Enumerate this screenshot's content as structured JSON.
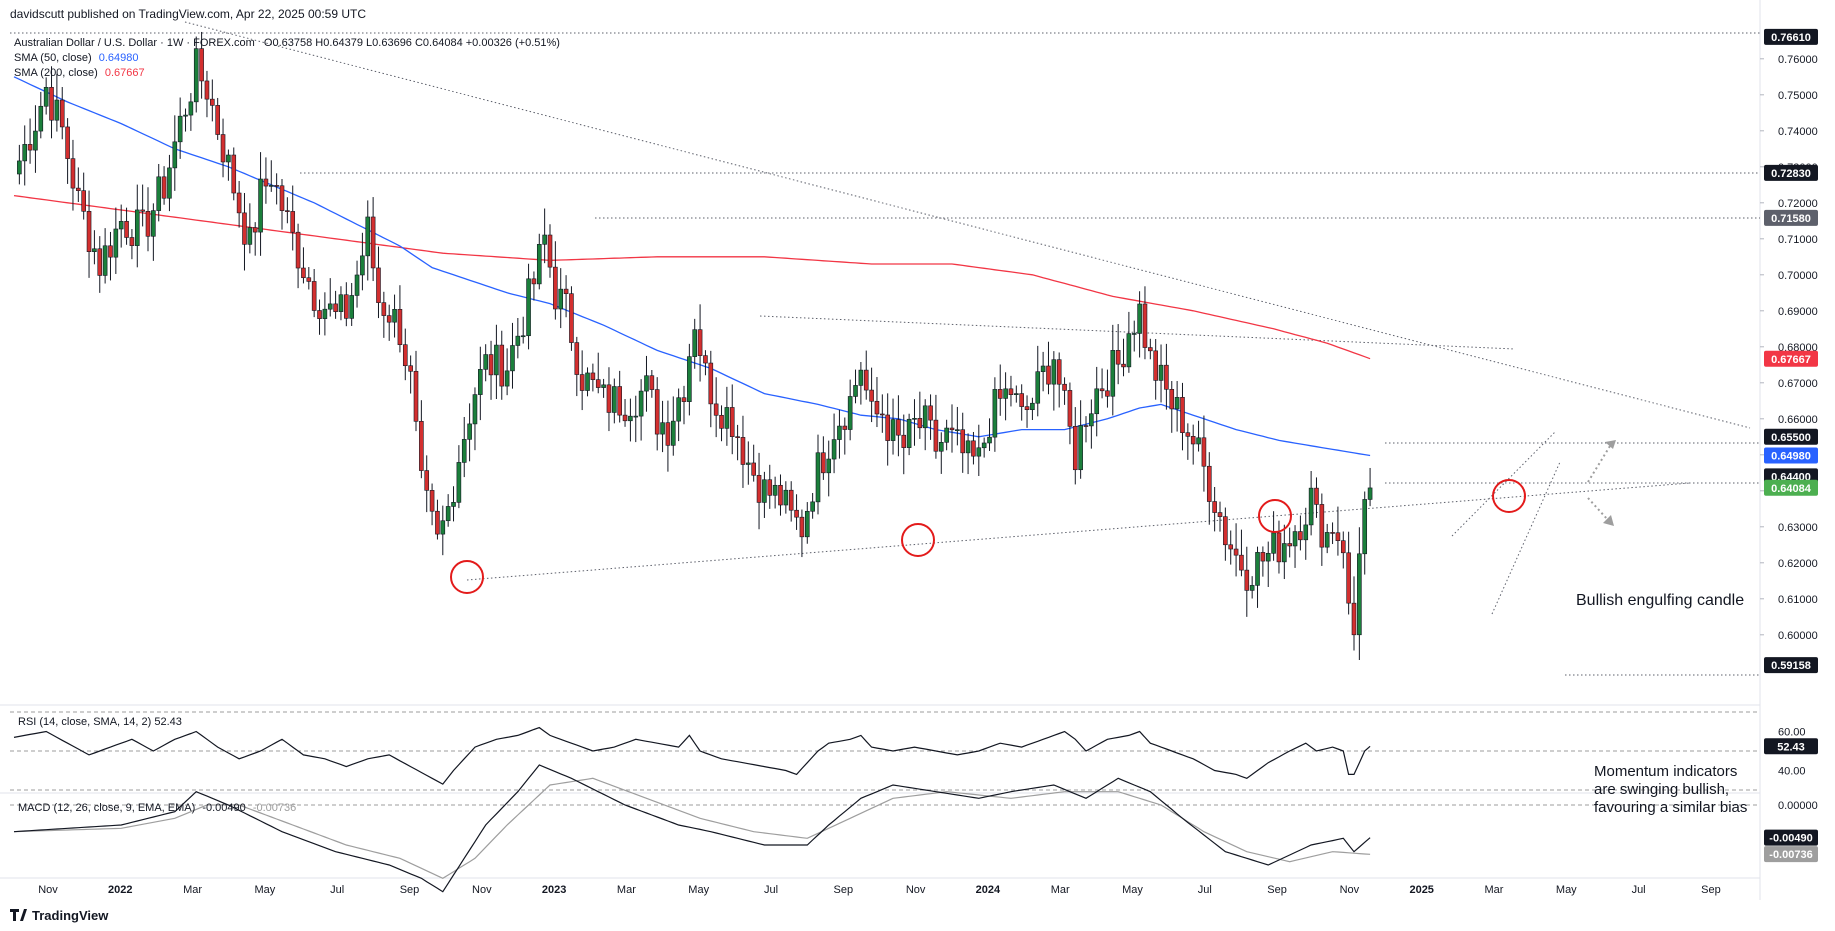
{
  "header": {
    "published": "davidscutt published on TradingView.com, Apr 22, 2025 00:59 UTC",
    "symbol": "Australian Dollar / U.S. Dollar · 1W · FOREX.com",
    "ohlc": "O0.63758 H0.64379 L0.63696 C0.64084 +0.00326 (+0.51%)",
    "sma50_label": "SMA (50, close)",
    "sma50_value": "0.64980",
    "sma200_label": "SMA (200, close)",
    "sma200_value": "0.67667"
  },
  "rsi_header": "RSI (14, close, SMA, 14, 2)  52.43",
  "macd_header_prefix": "MACD (12, 26, close, 9, EMA, EMA)",
  "macd_val1": "-0.00490",
  "macd_val2": "-0.00736",
  "annotations": {
    "engulfing": "Bullish engulfing candle",
    "momentum_1": "Momentum indicators",
    "momentum_2": "are swinging bullish,",
    "momentum_3": "favouring a similar bias"
  },
  "footer_logo": "TradingView",
  "colors": {
    "up": "#1b7f3b",
    "down": "#d32f2f",
    "sma50": "#2962ff",
    "sma200": "#f23645",
    "circle": "#e31b1b",
    "last_price": "#4caf50"
  },
  "chart_data": {
    "type": "candlestick",
    "price_axis": {
      "ticks": [
        "0.76000",
        "0.75000",
        "0.74000",
        "0.73000",
        "0.72000",
        "0.71000",
        "0.70000",
        "0.69000",
        "0.68000",
        "0.67000",
        "0.66000",
        "0.65000",
        "0.64000",
        "0.63000",
        "0.62000",
        "0.61000",
        "0.60000"
      ],
      "min": 0.588,
      "max": 0.768
    },
    "price_labels": [
      {
        "value": "0.76610",
        "kind": "level"
      },
      {
        "value": "0.72830",
        "kind": "level"
      },
      {
        "value": "0.71580",
        "kind": "level-grey"
      },
      {
        "value": "0.67667",
        "kind": "sma200"
      },
      {
        "value": "0.65500",
        "kind": "level"
      },
      {
        "value": "0.64980",
        "kind": "sma50"
      },
      {
        "value": "0.64400",
        "kind": "level"
      },
      {
        "value": "0.64084",
        "kind": "last"
      },
      {
        "value": "0.59158",
        "kind": "level"
      }
    ],
    "time_axis": {
      "labels": [
        "Nov",
        "2022",
        "Mar",
        "May",
        "Jul",
        "Sep",
        "Nov",
        "2023",
        "Mar",
        "May",
        "Jul",
        "Sep",
        "Nov",
        "2024",
        "Mar",
        "May",
        "Jul",
        "Sep",
        "Nov",
        "2025",
        "Mar",
        "May",
        "Jul",
        "Sep"
      ],
      "bold": [
        "2022",
        "2023",
        "2024",
        "2025"
      ]
    },
    "close_series_anchors": [
      [
        0,
        0.728
      ],
      [
        4,
        0.743
      ],
      [
        6,
        0.752
      ],
      [
        9,
        0.74
      ],
      [
        12,
        0.72
      ],
      [
        16,
        0.703
      ],
      [
        20,
        0.715
      ],
      [
        24,
        0.712
      ],
      [
        28,
        0.725
      ],
      [
        31,
        0.742
      ],
      [
        34,
        0.757
      ],
      [
        36,
        0.752
      ],
      [
        40,
        0.73
      ],
      [
        44,
        0.708
      ],
      [
        46,
        0.722
      ],
      [
        48,
        0.728
      ],
      [
        52,
        0.71
      ],
      [
        56,
        0.695
      ],
      [
        60,
        0.688
      ],
      [
        62,
        0.69
      ],
      [
        64,
        0.7
      ],
      [
        66,
        0.712
      ],
      [
        68,
        0.693
      ],
      [
        70,
        0.69
      ],
      [
        72,
        0.685
      ],
      [
        74,
        0.67
      ],
      [
        76,
        0.64
      ],
      [
        79,
        0.625
      ],
      [
        81,
        0.635
      ],
      [
        83,
        0.65
      ],
      [
        86,
        0.668
      ],
      [
        88,
        0.675
      ],
      [
        92,
        0.675
      ],
      [
        95,
        0.688
      ],
      [
        97,
        0.698
      ],
      [
        99,
        0.71
      ],
      [
        101,
        0.695
      ],
      [
        103,
        0.69
      ],
      [
        106,
        0.672
      ],
      [
        110,
        0.665
      ],
      [
        114,
        0.665
      ],
      [
        118,
        0.668
      ],
      [
        120,
        0.66
      ],
      [
        122,
        0.658
      ],
      [
        125,
        0.67
      ],
      [
        127,
        0.688
      ],
      [
        129,
        0.672
      ],
      [
        131,
        0.665
      ],
      [
        134,
        0.66
      ],
      [
        137,
        0.648
      ],
      [
        140,
        0.64
      ],
      [
        143,
        0.638
      ],
      [
        145,
        0.632
      ],
      [
        147,
        0.63
      ],
      [
        149,
        0.642
      ],
      [
        151,
        0.65
      ],
      [
        153,
        0.658
      ],
      [
        156,
        0.665
      ],
      [
        158,
        0.675
      ],
      [
        160,
        0.66
      ],
      [
        162,
        0.662
      ],
      [
        164,
        0.655
      ],
      [
        166,
        0.652
      ],
      [
        168,
        0.658
      ],
      [
        170,
        0.658
      ],
      [
        172,
        0.652
      ],
      [
        174,
        0.655
      ],
      [
        176,
        0.652
      ],
      [
        178,
        0.648
      ],
      [
        180,
        0.648
      ],
      [
        182,
        0.66
      ],
      [
        184,
        0.665
      ],
      [
        186,
        0.668
      ],
      [
        188,
        0.66
      ],
      [
        190,
        0.665
      ],
      [
        192,
        0.672
      ],
      [
        194,
        0.678
      ],
      [
        196,
        0.662
      ],
      [
        198,
        0.65
      ],
      [
        200,
        0.662
      ],
      [
        202,
        0.668
      ],
      [
        204,
        0.672
      ],
      [
        206,
        0.675
      ],
      [
        208,
        0.685
      ],
      [
        210,
        0.69
      ],
      [
        212,
        0.676
      ],
      [
        214,
        0.67
      ],
      [
        216,
        0.664
      ],
      [
        218,
        0.66
      ],
      [
        220,
        0.654
      ],
      [
        222,
        0.646
      ],
      [
        224,
        0.638
      ],
      [
        226,
        0.628
      ],
      [
        228,
        0.622
      ],
      [
        230,
        0.618
      ],
      [
        232,
        0.62
      ],
      [
        234,
        0.622
      ],
      [
        236,
        0.625
      ],
      [
        238,
        0.628
      ],
      [
        240,
        0.632
      ],
      [
        241,
        0.635
      ],
      [
        242,
        0.638
      ],
      [
        243,
        0.632
      ],
      [
        244,
        0.63
      ],
      [
        245,
        0.628
      ],
      [
        246,
        0.631
      ],
      [
        247,
        0.628
      ],
      [
        248,
        0.626
      ],
      [
        249,
        0.606
      ],
      [
        250,
        0.6
      ],
      [
        251,
        0.6225
      ],
      [
        252,
        0.6376
      ],
      [
        253,
        0.6408
      ]
    ],
    "sma50_anchors": [
      [
        0,
        0.755
      ],
      [
        10,
        0.748
      ],
      [
        20,
        0.742
      ],
      [
        30,
        0.735
      ],
      [
        40,
        0.73
      ],
      [
        48,
        0.725
      ],
      [
        56,
        0.72
      ],
      [
        64,
        0.714
      ],
      [
        72,
        0.708
      ],
      [
        78,
        0.702
      ],
      [
        84,
        0.699
      ],
      [
        92,
        0.695
      ],
      [
        100,
        0.692
      ],
      [
        110,
        0.686
      ],
      [
        120,
        0.679
      ],
      [
        130,
        0.674
      ],
      [
        140,
        0.667
      ],
      [
        150,
        0.664
      ],
      [
        158,
        0.661
      ],
      [
        165,
        0.66
      ],
      [
        172,
        0.657
      ],
      [
        180,
        0.655
      ],
      [
        188,
        0.657
      ],
      [
        196,
        0.657
      ],
      [
        204,
        0.66
      ],
      [
        210,
        0.663
      ],
      [
        214,
        0.664
      ],
      [
        220,
        0.661
      ],
      [
        228,
        0.657
      ],
      [
        236,
        0.654
      ],
      [
        244,
        0.652
      ],
      [
        253,
        0.6498
      ]
    ],
    "sma200_anchors": [
      [
        0,
        0.722
      ],
      [
        20,
        0.718
      ],
      [
        40,
        0.714
      ],
      [
        60,
        0.71
      ],
      [
        80,
        0.706
      ],
      [
        100,
        0.704
      ],
      [
        120,
        0.705
      ],
      [
        140,
        0.705
      ],
      [
        160,
        0.703
      ],
      [
        175,
        0.703
      ],
      [
        190,
        0.7
      ],
      [
        205,
        0.694
      ],
      [
        220,
        0.69
      ],
      [
        235,
        0.685
      ],
      [
        245,
        0.681
      ],
      [
        253,
        0.6767
      ]
    ],
    "rsi_anchors": [
      [
        0,
        57
      ],
      [
        6,
        60
      ],
      [
        10,
        54
      ],
      [
        14,
        48
      ],
      [
        18,
        52
      ],
      [
        22,
        56
      ],
      [
        26,
        50
      ],
      [
        30,
        56
      ],
      [
        34,
        60
      ],
      [
        38,
        52
      ],
      [
        42,
        46
      ],
      [
        46,
        50
      ],
      [
        50,
        56
      ],
      [
        54,
        48
      ],
      [
        58,
        46
      ],
      [
        62,
        42
      ],
      [
        66,
        46
      ],
      [
        70,
        48
      ],
      [
        74,
        42
      ],
      [
        78,
        36
      ],
      [
        80,
        33
      ],
      [
        82,
        40
      ],
      [
        86,
        52
      ],
      [
        90,
        56
      ],
      [
        94,
        58
      ],
      [
        98,
        62
      ],
      [
        100,
        58
      ],
      [
        104,
        54
      ],
      [
        108,
        50
      ],
      [
        112,
        52
      ],
      [
        116,
        56
      ],
      [
        120,
        54
      ],
      [
        124,
        52
      ],
      [
        126,
        58
      ],
      [
        128,
        50
      ],
      [
        132,
        46
      ],
      [
        136,
        44
      ],
      [
        140,
        42
      ],
      [
        144,
        40
      ],
      [
        146,
        38
      ],
      [
        148,
        44
      ],
      [
        150,
        50
      ],
      [
        152,
        54
      ],
      [
        156,
        56
      ],
      [
        158,
        58
      ],
      [
        160,
        52
      ],
      [
        164,
        50
      ],
      [
        168,
        52
      ],
      [
        172,
        50
      ],
      [
        176,
        48
      ],
      [
        180,
        50
      ],
      [
        184,
        54
      ],
      [
        188,
        52
      ],
      [
        192,
        56
      ],
      [
        196,
        60
      ],
      [
        198,
        56
      ],
      [
        200,
        50
      ],
      [
        204,
        56
      ],
      [
        208,
        58
      ],
      [
        210,
        60
      ],
      [
        212,
        54
      ],
      [
        216,
        50
      ],
      [
        220,
        46
      ],
      [
        224,
        40
      ],
      [
        228,
        38
      ],
      [
        230,
        36
      ],
      [
        234,
        44
      ],
      [
        238,
        50
      ],
      [
        241,
        54
      ],
      [
        243,
        50
      ],
      [
        246,
        52
      ],
      [
        248,
        50
      ],
      [
        249,
        38
      ],
      [
        250,
        38
      ],
      [
        252,
        50
      ],
      [
        253,
        52.4
      ]
    ],
    "rsi_axis": {
      "ticks": [
        "60.00",
        "40.00"
      ],
      "min": 30,
      "max": 70,
      "current": "52.43"
    },
    "macd_anchors": [
      [
        0,
        -0.004
      ],
      [
        20,
        -0.003
      ],
      [
        30,
        -0.001
      ],
      [
        34,
        0.002
      ],
      [
        40,
        0.0
      ],
      [
        50,
        -0.004
      ],
      [
        60,
        -0.007
      ],
      [
        70,
        -0.009
      ],
      [
        76,
        -0.011
      ],
      [
        80,
        -0.013
      ],
      [
        84,
        -0.008
      ],
      [
        88,
        -0.003
      ],
      [
        94,
        0.002
      ],
      [
        98,
        0.006
      ],
      [
        104,
        0.004
      ],
      [
        114,
        0.0
      ],
      [
        124,
        -0.003
      ],
      [
        130,
        -0.004
      ],
      [
        140,
        -0.006
      ],
      [
        148,
        -0.006
      ],
      [
        152,
        -0.003
      ],
      [
        158,
        0.001
      ],
      [
        164,
        0.003
      ],
      [
        172,
        0.002
      ],
      [
        180,
        0.001
      ],
      [
        186,
        0.002
      ],
      [
        194,
        0.003
      ],
      [
        200,
        0.001
      ],
      [
        206,
        0.004
      ],
      [
        212,
        0.002
      ],
      [
        218,
        -0.002
      ],
      [
        226,
        -0.007
      ],
      [
        234,
        -0.009
      ],
      [
        242,
        -0.006
      ],
      [
        248,
        -0.005
      ],
      [
        250,
        -0.007
      ],
      [
        253,
        -0.0049
      ]
    ],
    "signal_anchors": [
      [
        0,
        -0.004
      ],
      [
        20,
        -0.0035
      ],
      [
        30,
        -0.002
      ],
      [
        36,
        0.0
      ],
      [
        42,
        0.0
      ],
      [
        52,
        -0.003
      ],
      [
        62,
        -0.006
      ],
      [
        72,
        -0.008
      ],
      [
        80,
        -0.011
      ],
      [
        86,
        -0.008
      ],
      [
        92,
        -0.003
      ],
      [
        100,
        0.003
      ],
      [
        108,
        0.004
      ],
      [
        118,
        0.001
      ],
      [
        128,
        -0.002
      ],
      [
        138,
        -0.004
      ],
      [
        148,
        -0.005
      ],
      [
        156,
        -0.002
      ],
      [
        164,
        0.001
      ],
      [
        174,
        0.002
      ],
      [
        186,
        0.001
      ],
      [
        196,
        0.002
      ],
      [
        206,
        0.002
      ],
      [
        214,
        0.0
      ],
      [
        222,
        -0.004
      ],
      [
        230,
        -0.007
      ],
      [
        238,
        -0.0085
      ],
      [
        246,
        -0.007
      ],
      [
        253,
        -0.0074
      ]
    ],
    "macd_axis": {
      "ticks": [
        "0.00000"
      ],
      "min": -0.0105,
      "max": 0.0015
    }
  }
}
